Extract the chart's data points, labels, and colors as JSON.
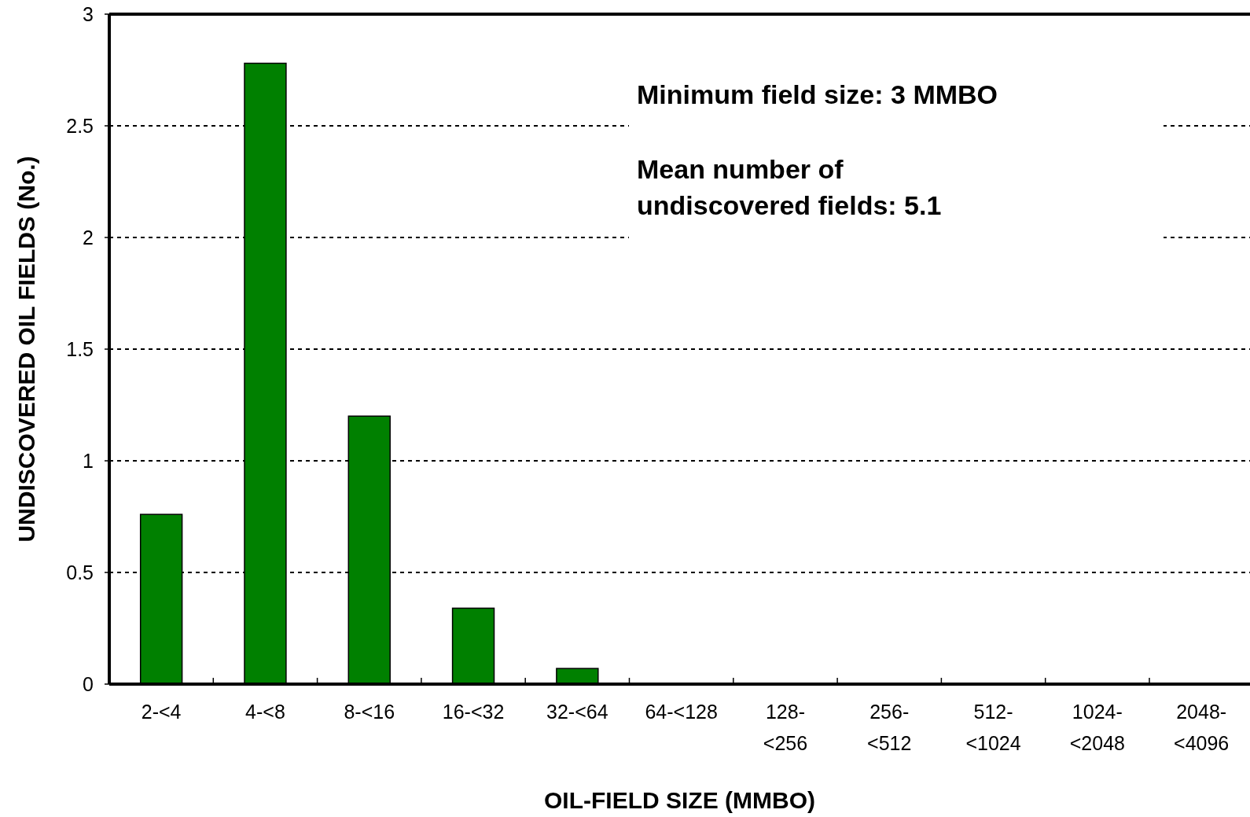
{
  "chart_data": {
    "type": "bar",
    "xlabel": "OIL-FIELD SIZE (MMBO)",
    "ylabel": "UNDISCOVERED OIL FIELDS (No.)",
    "categories": [
      "2-<4",
      "4-<8",
      "8-<16",
      "16-<32",
      "32-<64",
      "64-<128",
      "128-<256",
      "256-<512",
      "512-<1024",
      "1024-<2048",
      "2048-<4096"
    ],
    "values": [
      0.76,
      2.78,
      1.2,
      0.34,
      0.07,
      0,
      0,
      0,
      0,
      0,
      0
    ],
    "color": "#008000",
    "ylim": [
      0,
      3
    ],
    "yticks": [
      0,
      0.5,
      1,
      1.5,
      2,
      2.5,
      3
    ],
    "grid": "y",
    "annotations": [
      "Minimum field size: 3 MMBO",
      "Mean number of undiscovered fields: 5.1"
    ]
  }
}
